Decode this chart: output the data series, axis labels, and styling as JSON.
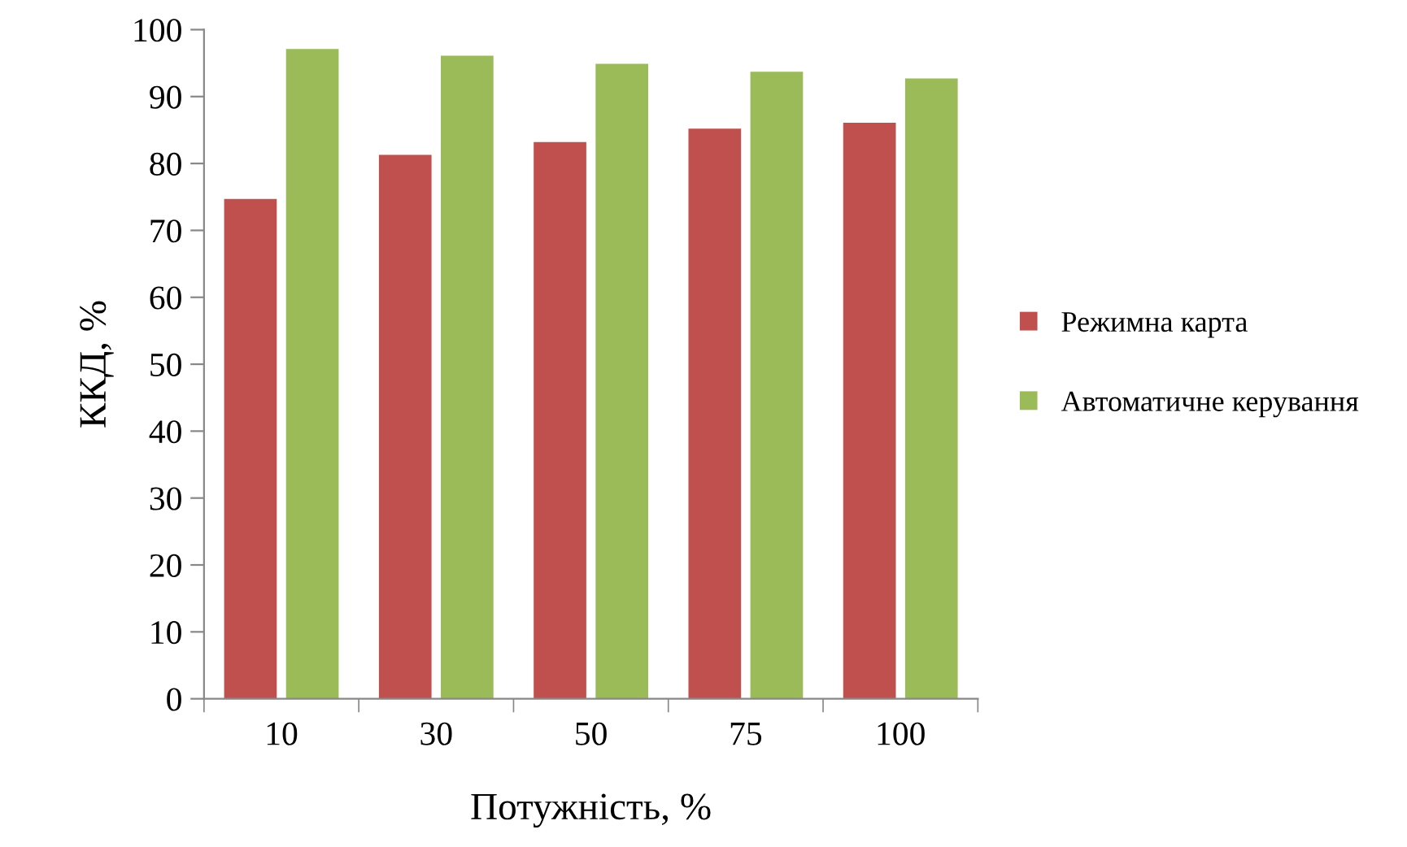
{
  "chart_data": {
    "type": "bar",
    "xlabel": "Потужність, %",
    "ylabel": "ККД, %",
    "categories": [
      "10",
      "30",
      "50",
      "75",
      "100"
    ],
    "series": [
      {
        "name": "Режимна карта",
        "color": "#c0504d",
        "values": [
          74.7,
          81.3,
          83.2,
          85.2,
          86.1
        ]
      },
      {
        "name": "Автоматичне керування",
        "color": "#9bbb59",
        "values": [
          97.1,
          96.1,
          94.9,
          93.7,
          92.7
        ]
      }
    ],
    "ylim": [
      0,
      100
    ],
    "yticks": [
      0,
      10,
      20,
      30,
      40,
      50,
      60,
      70,
      80,
      90,
      100
    ],
    "grid": false,
    "legend": "right"
  }
}
